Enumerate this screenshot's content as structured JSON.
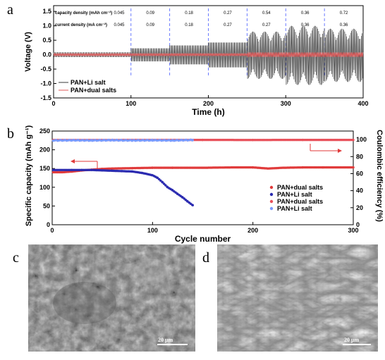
{
  "panels": {
    "a": "a",
    "b": "b",
    "c": "c",
    "d": "d"
  },
  "sem_c": {
    "scale_bar": "20 μm"
  },
  "sem_d": {
    "scale_bar": "20 μm"
  },
  "chart_data": [
    {
      "type": "line",
      "panel": "a",
      "xlabel": "Time (h)",
      "ylabel": "Voltage (V)",
      "xlim": [
        0,
        400
      ],
      "ylim": [
        -1.5,
        1.7
      ],
      "x_ticks": [
        0,
        100,
        200,
        300,
        400
      ],
      "y_ticks": [
        -1.5,
        -1.0,
        -0.5,
        0.0,
        0.5,
        1.0,
        1.5
      ],
      "grid": false,
      "legend": "bottom-left",
      "capacity_density_label": "capacity density (mAh cm⁻²)",
      "current_density_label": "current density (mA cm⁻²)",
      "segment_boundaries_h": [
        100,
        150,
        200,
        250,
        300,
        350
      ],
      "segments": [
        {
          "start": 0,
          "end": 100,
          "capacity": "0.045",
          "current": "0.045",
          "li_amp": 0.08
        },
        {
          "start": 100,
          "end": 150,
          "capacity": "0.09",
          "current": "0.09",
          "li_amp": 0.22
        },
        {
          "start": 150,
          "end": 200,
          "capacity": "0.18",
          "current": "0.18",
          "li_amp": 0.32
        },
        {
          "start": 200,
          "end": 250,
          "capacity": "0.27",
          "current": "0.27",
          "li_amp": 0.42
        },
        {
          "start": 250,
          "end": 300,
          "capacity": "0.54",
          "current": "0.27",
          "li_amp": 0.8
        },
        {
          "start": 300,
          "end": 350,
          "capacity": "0.36",
          "current": "0.36",
          "li_amp": 1.0
        },
        {
          "start": 350,
          "end": 400,
          "capacity": "0.72",
          "current": "0.36",
          "li_amp": 0.9
        }
      ],
      "series": [
        {
          "name": "PAN+Li salt",
          "color": "#3a3a3a"
        },
        {
          "name": "PAN+dual salts",
          "color": "#e05a5a"
        }
      ]
    },
    {
      "type": "scatter",
      "panel": "b",
      "xlabel": "Cycle number",
      "ylabel": "Specific capacity (mAh g⁻¹)",
      "ylabel_right": "Coulombic efficiency (%)",
      "xlim": [
        0,
        300
      ],
      "ylim": [
        0,
        250
      ],
      "ylim_right": [
        0,
        110
      ],
      "x_ticks": [
        0,
        100,
        200,
        300
      ],
      "y_ticks": [
        0,
        50,
        100,
        150,
        200,
        250
      ],
      "y_ticks_right": [
        0,
        20,
        40,
        60,
        80,
        100
      ],
      "legend": "bottom-right",
      "series": [
        {
          "name": "PAN+dual salts",
          "axis": "left",
          "color": "#e03a3a",
          "marker": "circle",
          "points": [
            [
              1,
              140
            ],
            [
              10,
              140
            ],
            [
              20,
              142
            ],
            [
              30,
              145
            ],
            [
              40,
              147
            ],
            [
              50,
              149
            ],
            [
              60,
              150
            ],
            [
              80,
              151
            ],
            [
              100,
              152
            ],
            [
              120,
              152
            ],
            [
              150,
              152
            ],
            [
              180,
              153
            ],
            [
              200,
              153
            ],
            [
              215,
              150
            ],
            [
              230,
              152
            ],
            [
              250,
              153
            ],
            [
              270,
              153
            ],
            [
              300,
              153
            ]
          ]
        },
        {
          "name": "PAN+Li salt",
          "axis": "left",
          "color": "#2a2ab0",
          "marker": "circle",
          "points": [
            [
              1,
              146
            ],
            [
              10,
              146
            ],
            [
              20,
              146
            ],
            [
              30,
              146
            ],
            [
              40,
              146
            ],
            [
              50,
              145
            ],
            [
              60,
              144
            ],
            [
              70,
              143
            ],
            [
              80,
              142
            ],
            [
              90,
              138
            ],
            [
              100,
              132
            ],
            [
              105,
              125
            ],
            [
              110,
              113
            ],
            [
              115,
              100
            ],
            [
              120,
              92
            ],
            [
              125,
              82
            ],
            [
              130,
              73
            ],
            [
              135,
              62
            ],
            [
              140,
              52
            ]
          ]
        },
        {
          "name": "PAN+dual salts",
          "axis": "right",
          "color": "#e8505a",
          "marker": "circle",
          "points": [
            [
              1,
              99.5
            ],
            [
              50,
              99.5
            ],
            [
              100,
              99.6
            ],
            [
              150,
              99.6
            ],
            [
              200,
              99.5
            ],
            [
              250,
              99.6
            ],
            [
              300,
              99.6
            ]
          ]
        },
        {
          "name": "PAN+Li salt",
          "axis": "right",
          "color": "#7a9aff",
          "marker": "circle",
          "points": [
            [
              1,
              99.0
            ],
            [
              20,
              99.2
            ],
            [
              40,
              99.0
            ],
            [
              60,
              99.3
            ],
            [
              80,
              99.0
            ],
            [
              100,
              99.2
            ],
            [
              120,
              99.0
            ],
            [
              140,
              99.5
            ]
          ]
        }
      ]
    }
  ]
}
